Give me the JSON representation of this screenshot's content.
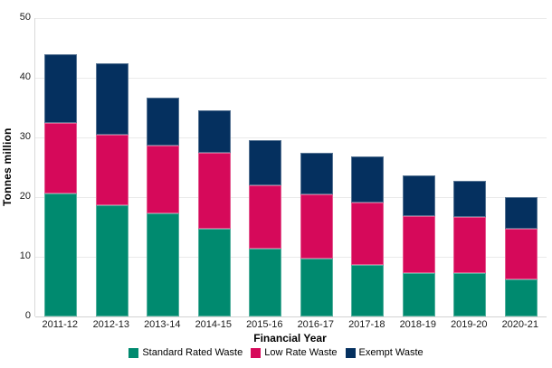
{
  "chart_data": {
    "type": "bar",
    "stacked": true,
    "title": "",
    "xlabel": "Financial Year",
    "ylabel": "Tonnes million",
    "ylim": [
      0,
      50
    ],
    "yticks": [
      0,
      10,
      20,
      30,
      40,
      50
    ],
    "grid": "horizontal",
    "legend_position": "bottom",
    "categories": [
      "2011-12",
      "2012-13",
      "2013-14",
      "2014-15",
      "2015-16",
      "2016-17",
      "2017-18",
      "2018-19",
      "2019-20",
      "2020-21"
    ],
    "series": [
      {
        "name": "Standard Rated Waste",
        "color": "#008A6F",
        "values": [
          20.6,
          18.7,
          17.3,
          14.7,
          11.4,
          9.7,
          8.7,
          7.3,
          7.3,
          6.2
        ]
      },
      {
        "name": "Low Rate Waste",
        "color": "#D6095A",
        "values": [
          11.8,
          11.7,
          11.4,
          12.7,
          10.5,
          10.8,
          10.4,
          9.5,
          9.3,
          8.5
        ]
      },
      {
        "name": "Exempt Waste",
        "color": "#05305F",
        "values": [
          11.6,
          12.1,
          7.9,
          7.1,
          7.6,
          6.9,
          7.7,
          6.8,
          6.1,
          5.3
        ]
      }
    ],
    "totals": [
      44.0,
      42.5,
      36.6,
      34.5,
      29.5,
      27.4,
      26.8,
      23.6,
      22.7,
      20.0
    ],
    "colors": {
      "gridline": "#eaeaea",
      "axis_line": "#d2d2d2",
      "text": "#1a1a1a",
      "background": "#ffffff"
    }
  }
}
